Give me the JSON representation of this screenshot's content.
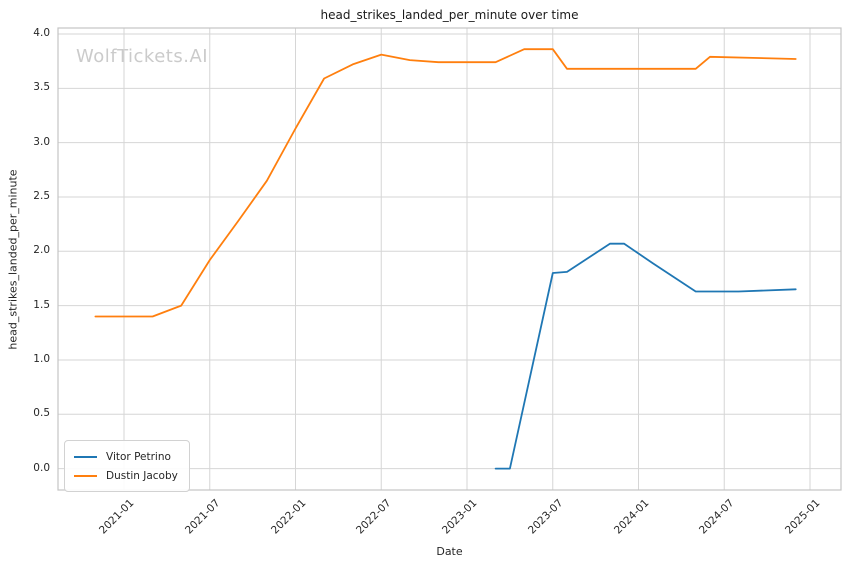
{
  "chart_data": {
    "type": "line",
    "title": "head_strikes_landed_per_minute over time",
    "xlabel": "Date",
    "ylabel": "head_strikes_landed_per_minute",
    "watermark": "WolfTickets.AI",
    "x_ticks": [
      "2021-01",
      "2021-07",
      "2022-01",
      "2022-07",
      "2023-01",
      "2023-07",
      "2024-01",
      "2024-07",
      "2025-01"
    ],
    "y_ticks": [
      "0.0",
      "0.5",
      "1.0",
      "1.5",
      "2.0",
      "2.5",
      "3.0",
      "3.5",
      "4.0"
    ],
    "ylim": [
      -0.2,
      4.05
    ],
    "grid": true,
    "legend_position": "lower left",
    "colors": {
      "grid": "#d6d6d6",
      "spine": "#c4c4c4",
      "text": "#262626",
      "watermark": "#cbcbcb"
    },
    "series": [
      {
        "name": "Vitor Petrino",
        "color": "#1f77b4",
        "points": [
          [
            "2023-03",
            0.0
          ],
          [
            "2023-04",
            0.0
          ],
          [
            "2023-07",
            1.8
          ],
          [
            "2023-08",
            1.81
          ],
          [
            "2023-11",
            2.07
          ],
          [
            "2023-12",
            2.07
          ],
          [
            "2024-02",
            1.89
          ],
          [
            "2024-05",
            1.63
          ],
          [
            "2024-08",
            1.63
          ],
          [
            "2024-12",
            1.65
          ]
        ]
      },
      {
        "name": "Dustin Jacoby",
        "color": "#ff7f0e",
        "points": [
          [
            "2020-11",
            1.4
          ],
          [
            "2021-01",
            1.4
          ],
          [
            "2021-03",
            1.4
          ],
          [
            "2021-05",
            1.5
          ],
          [
            "2021-07",
            1.92
          ],
          [
            "2021-09",
            2.28
          ],
          [
            "2021-11",
            2.65
          ],
          [
            "2022-01",
            3.13
          ],
          [
            "2022-03",
            3.59
          ],
          [
            "2022-05",
            3.72
          ],
          [
            "2022-07",
            3.81
          ],
          [
            "2022-09",
            3.76
          ],
          [
            "2022-11",
            3.74
          ],
          [
            "2023-03",
            3.74
          ],
          [
            "2023-05",
            3.86
          ],
          [
            "2023-07",
            3.86
          ],
          [
            "2023-08",
            3.68
          ],
          [
            "2024-05",
            3.68
          ],
          [
            "2024-06",
            3.79
          ],
          [
            "2024-09",
            3.78
          ],
          [
            "2024-12",
            3.77
          ]
        ]
      }
    ]
  }
}
